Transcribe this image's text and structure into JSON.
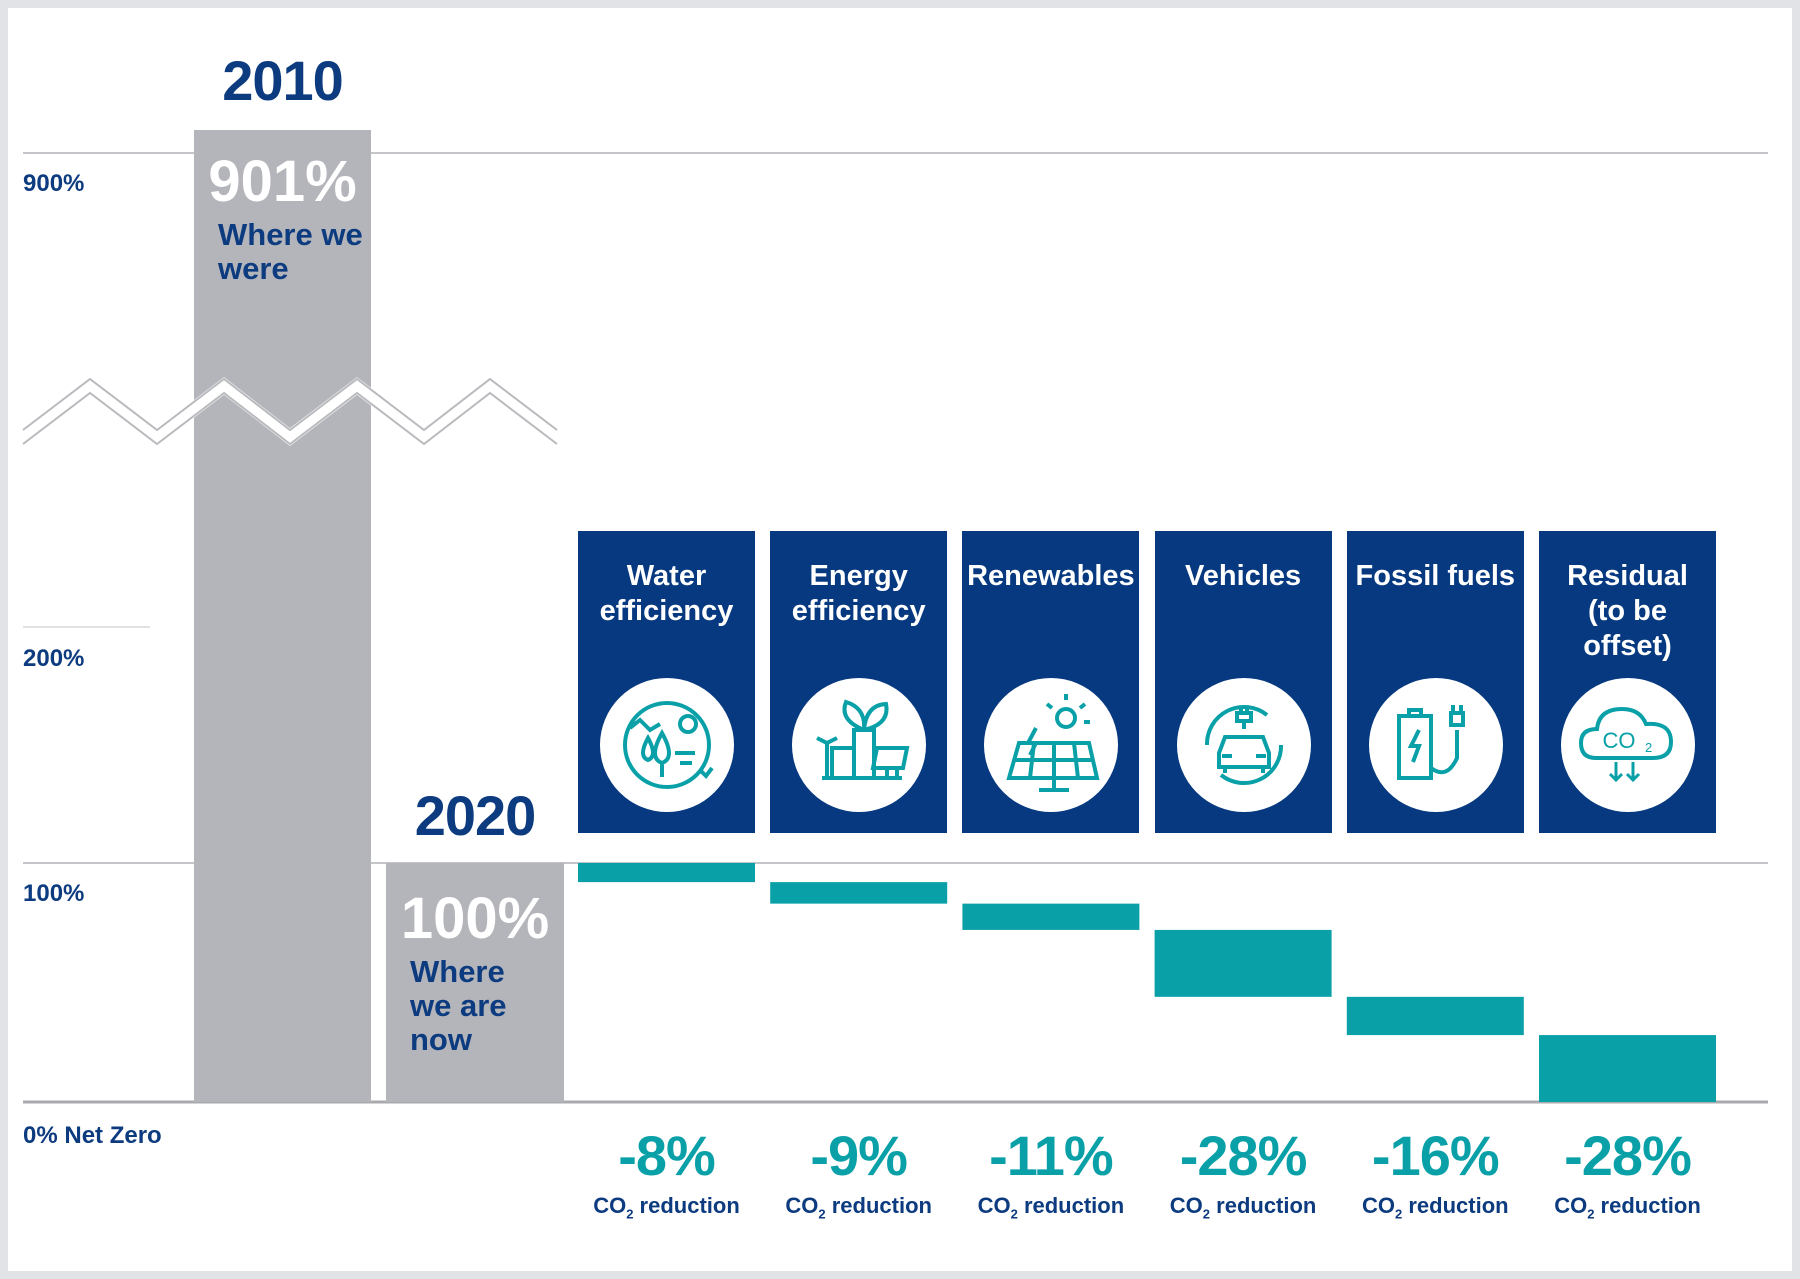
{
  "chart_data": {
    "type": "waterfall",
    "y_axis": {
      "ticks": [
        "900%",
        "200%",
        "100%",
        "0% Net Zero"
      ],
      "broken_axis": true
    },
    "bars": [
      {
        "year": "2010",
        "value": 901,
        "value_label": "901%",
        "caption": "Where we were",
        "color": "#b4b5ba"
      },
      {
        "year": "2020",
        "value": 100,
        "value_label": "100%",
        "caption": "Where we are now",
        "color": "#b4b5ba"
      }
    ],
    "reductions": [
      {
        "category": "Water efficiency",
        "value": -8,
        "label": "-8%",
        "icon": "water-landscape-icon"
      },
      {
        "category": "Energy efficiency",
        "value": -9,
        "label": "-9%",
        "icon": "energy-plant-leaf-icon"
      },
      {
        "category": "Renewables",
        "value": -11,
        "label": "-11%",
        "icon": "solar-panel-sun-icon"
      },
      {
        "category": "Vehicles",
        "value": -28,
        "label": "-28%",
        "icon": "electric-car-icon"
      },
      {
        "category": "Fossil fuels",
        "value": -16,
        "label": "-16%",
        "icon": "battery-plug-icon"
      },
      {
        "category": "Residual\n(to be\noffset)",
        "value": -28,
        "label": "-28%",
        "icon": "co2-cloud-icon"
      }
    ],
    "reduction_caption_pre": "CO",
    "reduction_caption_sub": "2",
    "reduction_caption_post": " reduction",
    "colors": {
      "navy": "#0d3b7f",
      "box": "#06397f",
      "teal": "#0aa0a8",
      "gray": "#b4b5ba",
      "gridline": "#c4c5c9"
    }
  }
}
